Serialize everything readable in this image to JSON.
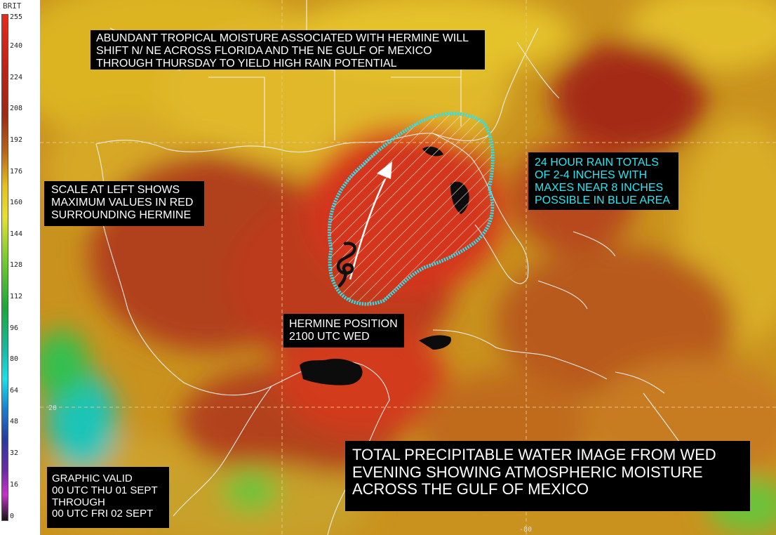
{
  "scale": {
    "title": "BRIT",
    "ticks": [
      "255",
      "240",
      "224",
      "208",
      "192",
      "176",
      "160",
      "144",
      "128",
      "112",
      "96",
      "80",
      "64",
      "48",
      "32",
      "16",
      "0"
    ]
  },
  "map": {
    "grid_labels": {
      "lat": "20",
      "lon": "-80"
    }
  },
  "annotations": {
    "top": "ABUNDANT TROPICAL MOISTURE ASSOCIATED WITH HERMINE WILL\nSHIFT N/ NE ACROSS FLORIDA AND THE NE GULF OF MEXICO\nTHROUGH THURSDAY TO YIELD HIGH RAIN POTENTIAL",
    "scale_note": "SCALE AT LEFT SHOWS\nMAXIMUM VALUES IN RED\nSURROUNDING HERMINE",
    "rain": "24 HOUR RAIN TOTALS\nOF 2-4 INCHES WITH\nMAXES NEAR 8 INCHES\nPOSSIBLE IN BLUE AREA",
    "position": "HERMINE POSITION\n2100 UTC WED",
    "valid": "GRAPHIC VALID\n00 UTC THU 01 SEPT\nTHROUGH\n00 UTC FRI 02 SEPT",
    "title": "TOTAL PRECIPITABLE WATER IMAGE FROM WED\nEVENING SHOWING ATMOSPHERIC MOISTURE\nACROSS THE GULF OF MEXICO"
  },
  "colors": {
    "rain_area_outline": "#27e3f0",
    "rain_text": "#26e8f2",
    "motion_arrow": "#ffffff"
  }
}
